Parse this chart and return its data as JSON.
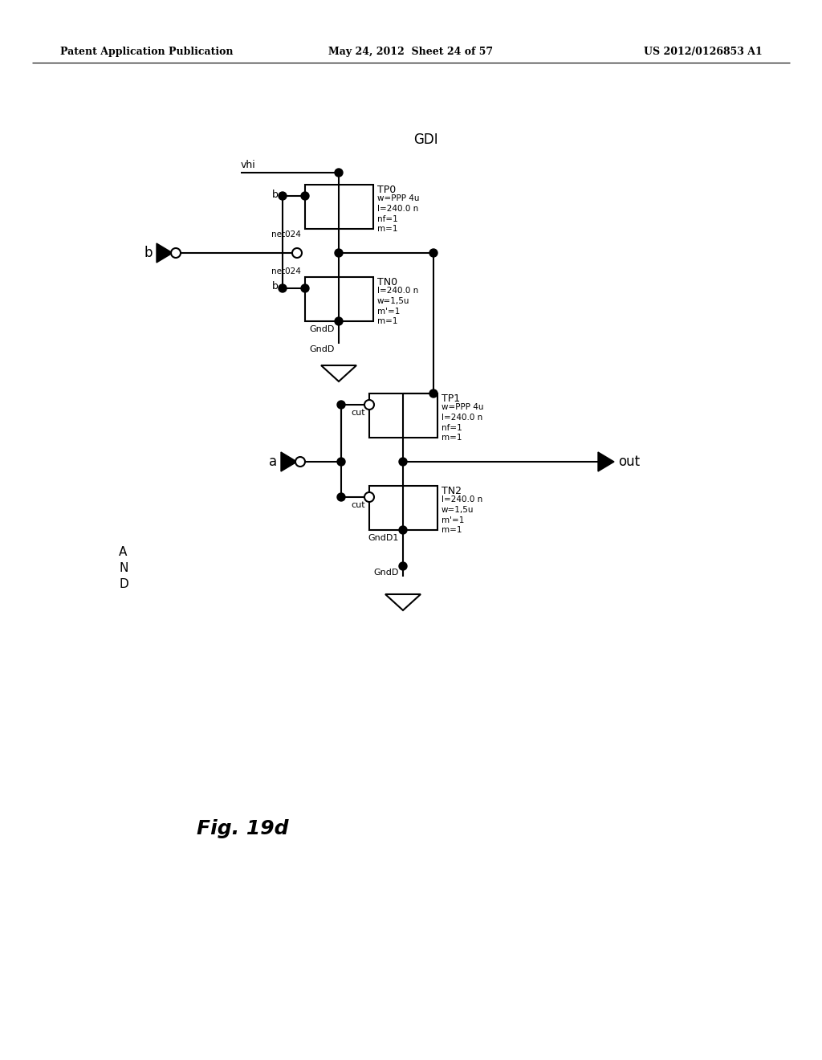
{
  "title": "GDI",
  "fig_label": "Fig. 19d",
  "and_label": [
    "A",
    "N",
    "D"
  ],
  "header_left": "Patent Application Publication",
  "header_mid": "May 24, 2012  Sheet 24 of 57",
  "header_right": "US 2012/0126853 A1",
  "background_color": "#ffffff",
  "line_color": "#000000",
  "fig_width": 10.24,
  "fig_height": 13.2,
  "dpi": 100
}
